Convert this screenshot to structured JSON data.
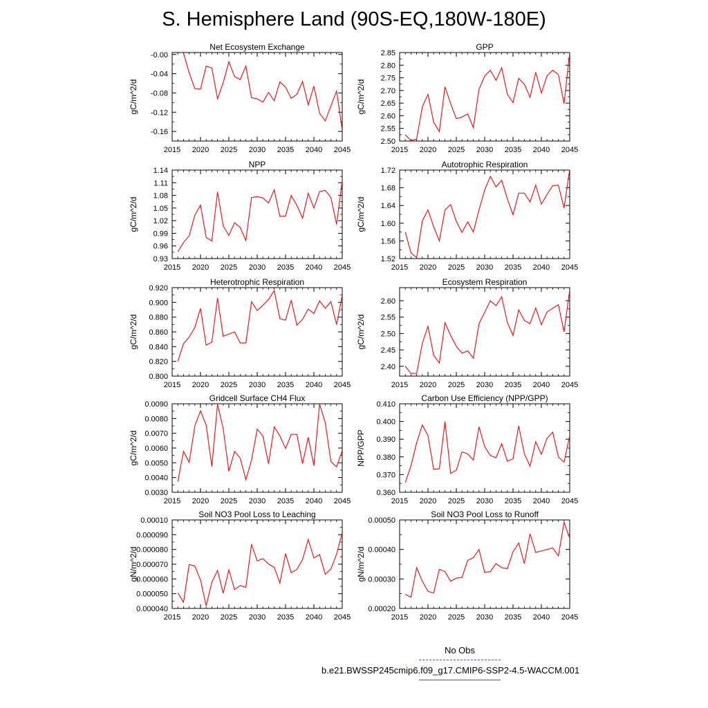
{
  "title": "S. Hemisphere Land (90S-EQ,180W-180E)",
  "legend": {
    "obs_label": "No Obs",
    "model_label": "b.e21.BWSSP245cmip6.f09_g17.CMIP6-SSP2-4.5-WACCM.001",
    "obs_color": "#5a5acd",
    "model_color": "#e41a1c"
  },
  "chart_data": [
    {
      "type": "line",
      "title": "Net Ecosystem Exchange",
      "ylabel": "gC/m^2/d",
      "xlim": [
        2015,
        2045
      ],
      "ylim": [
        -0.18,
        0.004
      ],
      "yticks": [
        -0.16,
        -0.12,
        -0.08,
        -0.04,
        -0.0
      ],
      "ytick_labels": [
        "-0.16",
        "-0.12",
        "-0.08",
        "-0.04",
        "-0.00"
      ],
      "xticks": [
        2015,
        2020,
        2025,
        2030,
        2035,
        2040,
        2045
      ],
      "x": [
        2016,
        2017,
        2018,
        2019,
        2020,
        2021,
        2022,
        2023,
        2024,
        2025,
        2026,
        2027,
        2028,
        2029,
        2030,
        2031,
        2032,
        2033,
        2034,
        2035,
        2036,
        2037,
        2038,
        2039,
        2040,
        2041,
        2042,
        2043,
        2044,
        2045
      ],
      "values": [
        0.018,
        0.003,
        -0.038,
        -0.071,
        -0.072,
        -0.024,
        -0.028,
        -0.092,
        -0.059,
        -0.015,
        -0.046,
        -0.052,
        -0.024,
        -0.09,
        -0.092,
        -0.099,
        -0.079,
        -0.096,
        -0.057,
        -0.068,
        -0.091,
        -0.083,
        -0.056,
        -0.105,
        -0.066,
        -0.122,
        -0.138,
        -0.107,
        -0.076,
        -0.157
      ]
    },
    {
      "type": "line",
      "title": "GPP",
      "ylabel": "gC/m^2/d",
      "xlim": [
        2015,
        2045
      ],
      "ylim": [
        2.5,
        2.85
      ],
      "yticks": [
        2.5,
        2.55,
        2.6,
        2.65,
        2.7,
        2.75,
        2.8,
        2.85
      ],
      "ytick_labels": [
        "2.50",
        "2.55",
        "2.60",
        "2.65",
        "2.70",
        "2.75",
        "2.80",
        "2.85"
      ],
      "xticks": [
        2015,
        2020,
        2025,
        2030,
        2035,
        2040,
        2045
      ],
      "x": [
        2016,
        2017,
        2018,
        2019,
        2020,
        2021,
        2022,
        2023,
        2024,
        2025,
        2026,
        2027,
        2028,
        2029,
        2030,
        2031,
        2032,
        2033,
        2034,
        2035,
        2036,
        2037,
        2038,
        2039,
        2040,
        2041,
        2042,
        2043,
        2044,
        2045
      ],
      "values": [
        2.525,
        2.502,
        2.508,
        2.635,
        2.685,
        2.575,
        2.537,
        2.715,
        2.648,
        2.588,
        2.595,
        2.607,
        2.553,
        2.705,
        2.757,
        2.78,
        2.74,
        2.79,
        2.685,
        2.652,
        2.748,
        2.725,
        2.673,
        2.772,
        2.69,
        2.758,
        2.78,
        2.763,
        2.648,
        2.85
      ]
    },
    {
      "type": "line",
      "title": "NPP",
      "ylabel": "gC/m^2/d",
      "xlim": [
        2015,
        2045
      ],
      "ylim": [
        0.93,
        1.14
      ],
      "yticks": [
        0.93,
        0.96,
        0.99,
        1.02,
        1.05,
        1.08,
        1.11,
        1.14
      ],
      "ytick_labels": [
        "0.93",
        "0.96",
        "0.99",
        "1.02",
        "1.05",
        "1.08",
        "1.11",
        "1.14"
      ],
      "xticks": [
        2015,
        2020,
        2025,
        2030,
        2035,
        2040,
        2045
      ],
      "x": [
        2016,
        2017,
        2018,
        2019,
        2020,
        2021,
        2022,
        2023,
        2024,
        2025,
        2026,
        2027,
        2028,
        2029,
        2030,
        2031,
        2032,
        2033,
        2034,
        2035,
        2036,
        2037,
        2038,
        2039,
        2040,
        2041,
        2042,
        2043,
        2044,
        2045
      ],
      "values": [
        0.946,
        0.968,
        0.984,
        1.033,
        1.057,
        0.98,
        0.972,
        1.088,
        1.008,
        0.985,
        1.015,
        1.004,
        0.973,
        1.075,
        1.077,
        1.074,
        1.062,
        1.093,
        1.03,
        1.031,
        1.08,
        1.056,
        1.026,
        1.085,
        1.05,
        1.089,
        1.092,
        1.075,
        1.011,
        1.115
      ]
    },
    {
      "type": "line",
      "title": "Autotrophic Respiration",
      "ylabel": "gC/m^2/d",
      "xlim": [
        2015,
        2045
      ],
      "ylim": [
        1.52,
        1.72
      ],
      "yticks": [
        1.52,
        1.56,
        1.6,
        1.64,
        1.68,
        1.72
      ],
      "ytick_labels": [
        "1.52",
        "1.56",
        "1.60",
        "1.64",
        "1.68",
        "1.72"
      ],
      "xticks": [
        2015,
        2020,
        2025,
        2030,
        2035,
        2040,
        2045
      ],
      "x": [
        2016,
        2017,
        2018,
        2019,
        2020,
        2021,
        2022,
        2023,
        2024,
        2025,
        2026,
        2027,
        2028,
        2029,
        2030,
        2031,
        2032,
        2033,
        2034,
        2035,
        2036,
        2037,
        2038,
        2039,
        2040,
        2041,
        2042,
        2043,
        2044,
        2045
      ],
      "values": [
        1.58,
        1.533,
        1.522,
        1.605,
        1.63,
        1.592,
        1.56,
        1.63,
        1.642,
        1.604,
        1.579,
        1.603,
        1.58,
        1.63,
        1.675,
        1.706,
        1.682,
        1.697,
        1.655,
        1.619,
        1.668,
        1.668,
        1.648,
        1.686,
        1.643,
        1.665,
        1.685,
        1.686,
        1.634,
        1.722
      ]
    },
    {
      "type": "line",
      "title": "Heterotrophic Respiration",
      "ylabel": "gC/m^2/d",
      "xlim": [
        2015,
        2045
      ],
      "ylim": [
        0.8,
        0.92
      ],
      "yticks": [
        0.8,
        0.82,
        0.84,
        0.86,
        0.88,
        0.9,
        0.92
      ],
      "ytick_labels": [
        "0.800",
        "0.820",
        "0.840",
        "0.860",
        "0.880",
        "0.900",
        "0.920"
      ],
      "xticks": [
        2015,
        2020,
        2025,
        2030,
        2035,
        2040,
        2045
      ],
      "x": [
        2016,
        2017,
        2018,
        2019,
        2020,
        2021,
        2022,
        2023,
        2024,
        2025,
        2026,
        2027,
        2028,
        2029,
        2030,
        2031,
        2032,
        2033,
        2034,
        2035,
        2036,
        2037,
        2038,
        2039,
        2040,
        2041,
        2042,
        2043,
        2044,
        2045
      ],
      "values": [
        0.82,
        0.844,
        0.853,
        0.866,
        0.892,
        0.842,
        0.846,
        0.906,
        0.854,
        0.857,
        0.86,
        0.845,
        0.845,
        0.901,
        0.889,
        0.896,
        0.904,
        0.916,
        0.878,
        0.876,
        0.903,
        0.869,
        0.877,
        0.891,
        0.885,
        0.902,
        0.892,
        0.901,
        0.87,
        0.91
      ]
    },
    {
      "type": "line",
      "title": "Ecosystem Respiration",
      "ylabel": "gC/m^2/d",
      "xlim": [
        2015,
        2045
      ],
      "ylim": [
        2.37,
        2.64
      ],
      "yticks": [
        2.4,
        2.45,
        2.5,
        2.55,
        2.6
      ],
      "ytick_labels": [
        "2.40",
        "2.45",
        "2.50",
        "2.55",
        "2.60"
      ],
      "xticks": [
        2015,
        2020,
        2025,
        2030,
        2035,
        2040,
        2045
      ],
      "x": [
        2016,
        2017,
        2018,
        2019,
        2020,
        2021,
        2022,
        2023,
        2024,
        2025,
        2026,
        2027,
        2028,
        2029,
        2030,
        2031,
        2032,
        2033,
        2034,
        2035,
        2036,
        2037,
        2038,
        2039,
        2040,
        2041,
        2042,
        2043,
        2044,
        2045
      ],
      "values": [
        2.4,
        2.378,
        2.378,
        2.47,
        2.522,
        2.434,
        2.41,
        2.533,
        2.494,
        2.461,
        2.44,
        2.447,
        2.425,
        2.53,
        2.565,
        2.6,
        2.585,
        2.612,
        2.534,
        2.494,
        2.572,
        2.54,
        2.53,
        2.578,
        2.527,
        2.566,
        2.577,
        2.588,
        2.505,
        2.633
      ]
    },
    {
      "type": "line",
      "title": "Gridcell Surface CH4 Flux",
      "ylabel": "gC/m^2/d",
      "xlim": [
        2015,
        2045
      ],
      "ylim": [
        0.003,
        0.009
      ],
      "yticks": [
        0.003,
        0.004,
        0.005,
        0.006,
        0.007,
        0.008,
        0.009
      ],
      "ytick_labels": [
        "0.0030",
        "0.0040",
        "0.0050",
        "0.0060",
        "0.0070",
        "0.0080",
        "0.0090"
      ],
      "xticks": [
        2015,
        2020,
        2025,
        2030,
        2035,
        2040,
        2045
      ],
      "x": [
        2016,
        2017,
        2018,
        2019,
        2020,
        2021,
        2022,
        2023,
        2024,
        2025,
        2026,
        2027,
        2028,
        2029,
        2030,
        2031,
        2032,
        2033,
        2034,
        2035,
        2036,
        2037,
        2038,
        2039,
        2040,
        2041,
        2042,
        2043,
        2044,
        2045
      ],
      "values": [
        0.00372,
        0.00578,
        0.00503,
        0.0075,
        0.00852,
        0.00755,
        0.00475,
        0.00897,
        0.00732,
        0.00442,
        0.00577,
        0.00532,
        0.00385,
        0.00518,
        0.00728,
        0.00682,
        0.00493,
        0.00744,
        0.00682,
        0.00597,
        0.00693,
        0.00693,
        0.00493,
        0.00673,
        0.00479,
        0.00898,
        0.00772,
        0.00508,
        0.00472,
        0.00583
      ]
    },
    {
      "type": "line",
      "title": "Carbon Use Efficiency (NPP/GPP)",
      "ylabel": "NPP/GPP",
      "xlim": [
        2015,
        2045
      ],
      "ylim": [
        0.36,
        0.41
      ],
      "yticks": [
        0.36,
        0.37,
        0.38,
        0.39,
        0.4,
        0.41
      ],
      "ytick_labels": [
        "0.360",
        "0.370",
        "0.380",
        "0.390",
        "0.400",
        "0.410"
      ],
      "xticks": [
        2015,
        2020,
        2025,
        2030,
        2035,
        2040,
        2045
      ],
      "x": [
        2016,
        2017,
        2018,
        2019,
        2020,
        2021,
        2022,
        2023,
        2024,
        2025,
        2026,
        2027,
        2028,
        2029,
        2030,
        2031,
        2032,
        2033,
        2034,
        2035,
        2036,
        2037,
        2038,
        2039,
        2040,
        2041,
        2042,
        2043,
        2044,
        2045
      ],
      "values": [
        0.3655,
        0.375,
        0.388,
        0.398,
        0.392,
        0.373,
        0.3733,
        0.4,
        0.3707,
        0.3725,
        0.3828,
        0.3817,
        0.3782,
        0.397,
        0.3858,
        0.3808,
        0.3795,
        0.3875,
        0.3775,
        0.379,
        0.3975,
        0.3818,
        0.3748,
        0.3885,
        0.3815,
        0.3905,
        0.394,
        0.38,
        0.377,
        0.392
      ]
    },
    {
      "type": "line",
      "title": "Soil NO3 Pool Loss to Leaching",
      "ylabel": "gN/m^2/d",
      "xlim": [
        2015,
        2045
      ],
      "ylim": [
        4e-05,
        0.0001
      ],
      "yticks": [
        4e-05,
        5e-05,
        6e-05,
        7e-05,
        8e-05,
        9e-05,
        0.0001
      ],
      "ytick_labels": [
        "0.000040",
        "0.000050",
        "0.000060",
        "0.000070",
        "0.000080",
        "0.000090",
        "0.00010"
      ],
      "xticks": [
        2015,
        2020,
        2025,
        2030,
        2035,
        2040,
        2045
      ],
      "x": [
        2016,
        2017,
        2018,
        2019,
        2020,
        2021,
        2022,
        2023,
        2024,
        2025,
        2026,
        2027,
        2028,
        2029,
        2030,
        2031,
        2032,
        2033,
        2034,
        2035,
        2036,
        2037,
        2038,
        2039,
        2040,
        2041,
        2042,
        2043,
        2044,
        2045
      ],
      "values": [
        5.05e-05,
        4.42e-05,
        6.98e-05,
        6.87e-05,
        5.93e-05,
        4.18e-05,
        5.78e-05,
        6.58e-05,
        5.02e-05,
        6.62e-05,
        5.28e-05,
        5.55e-05,
        5.43e-05,
        8.35e-05,
        7.22e-05,
        7.38e-05,
        7.02e-05,
        6.78e-05,
        5.72e-05,
        7.72e-05,
        6.42e-05,
        6.65e-05,
        7.32e-05,
        8.68e-05,
        7.42e-05,
        7.65e-05,
        6.32e-05,
        6.68e-05,
        7.68e-05,
        9.15e-05
      ]
    },
    {
      "type": "line",
      "title": "Soil NO3 Pool Loss to Runoff",
      "ylabel": "gN/m^2/d",
      "xlim": [
        2015,
        2045
      ],
      "ylim": [
        0.0002,
        0.0005
      ],
      "yticks": [
        0.0002,
        0.0003,
        0.0004,
        0.0005
      ],
      "ytick_labels": [
        "0.00020",
        "0.00030",
        "0.00040",
        "0.00050"
      ],
      "xticks": [
        2015,
        2020,
        2025,
        2030,
        2035,
        2040,
        2045
      ],
      "x": [
        2016,
        2017,
        2018,
        2019,
        2020,
        2021,
        2022,
        2023,
        2024,
        2025,
        2026,
        2027,
        2028,
        2029,
        2030,
        2031,
        2032,
        2033,
        2034,
        2035,
        2036,
        2037,
        2038,
        2039,
        2040,
        2041,
        2042,
        2043,
        2044,
        2045
      ],
      "values": [
        0.000248,
        0.000238,
        0.000338,
        0.000292,
        0.000258,
        0.000252,
        0.000333,
        0.000325,
        0.000292,
        0.000303,
        0.000305,
        0.000363,
        0.000372,
        0.0004,
        0.000322,
        0.000325,
        0.000352,
        0.000338,
        0.000335,
        0.000392,
        0.000422,
        0.000352,
        0.000453,
        0.00039,
        0.000395,
        0.0004,
        0.000405,
        0.000378,
        0.000492,
        0.000438
      ]
    }
  ]
}
